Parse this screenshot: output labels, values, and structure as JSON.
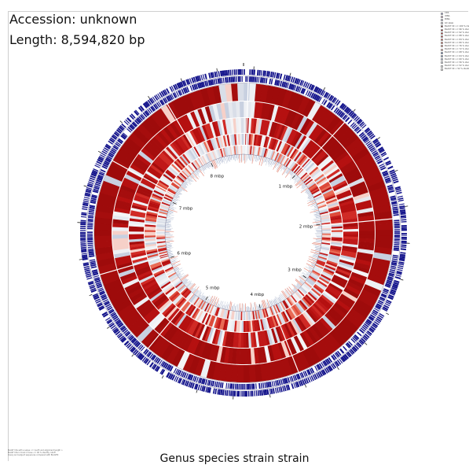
{
  "header": {
    "accession": "Accession: unknown",
    "length": "Length: 8,594,820 bp"
  },
  "caption": "Genus species strain strain",
  "map": {
    "total_bp": 8594820,
    "tick_labels": [
      "1 mbp",
      "2 mbp",
      "3 mbp",
      "4 mbp",
      "5 mbp",
      "6 mbp",
      "7 mbp",
      "8 mbp"
    ],
    "tick_positions_bp": [
      1000000,
      2000000,
      3000000,
      4000000,
      5000000,
      6000000,
      7000000,
      8000000
    ]
  },
  "legend": {
    "items": [
      {
        "label": "CDS",
        "color": "#8c8fd0"
      },
      {
        "label": "rRNA",
        "color": "#d9a0c8"
      },
      {
        "label": "tRNA",
        "color": "#c8c8e8"
      },
      {
        "label": "GC skew",
        "color": "#e0e0f0"
      },
      {
        "label": "BLAST hit >= 100 % identity",
        "color": "#5a0a0a"
      },
      {
        "label": "BLAST hit >= 96 % identity",
        "color": "#9e0b0b"
      },
      {
        "label": "BLAST hit >= 92 % identity",
        "color": "#b51010"
      },
      {
        "label": "BLAST hit >= 88 % identity",
        "color": "#c92020"
      },
      {
        "label": "BLAST hit >= 84 % identity",
        "color": "#d83a30"
      },
      {
        "label": "BLAST hit >= 80 % identity",
        "color": "#e55a45"
      },
      {
        "label": "BLAST hit >= 76 % identity",
        "color": "#ee7d68"
      },
      {
        "label": "BLAST hit >= 72 % identity",
        "color": "#f3a08f"
      },
      {
        "label": "BLAST hit >= 68 % identity",
        "color": "#4466aa"
      },
      {
        "label": "BLAST hit >= 64 % identity",
        "color": "#6f8fc4"
      },
      {
        "label": "BLAST hit >= 60 % identity",
        "color": "#a9bbd9"
      },
      {
        "label": "BLAST hit >= 56 % identity",
        "color": "#d0d8e8"
      },
      {
        "label": "BLAST hit >= 52 % identity",
        "color": "#e8ecf2"
      },
      {
        "label": "BLAST hit < 52 % identity",
        "color": "#f7f7f7"
      }
    ]
  },
  "notes": [
    "BLAST hits with e-value <= 1e-05 and alignment length >= 50",
    "BLAST hits in track 2 have <= 90 % identity cutoff",
    "Query and subject sequences compared with BLASTN"
  ],
  "colors": {
    "feature_blue": "#15158c",
    "blast_dark": "#a50d0d",
    "blast_mid": "#d23327",
    "blast_light": "#ee7b66",
    "low_identity": "#dfe3ea",
    "backbone": "#000000"
  }
}
